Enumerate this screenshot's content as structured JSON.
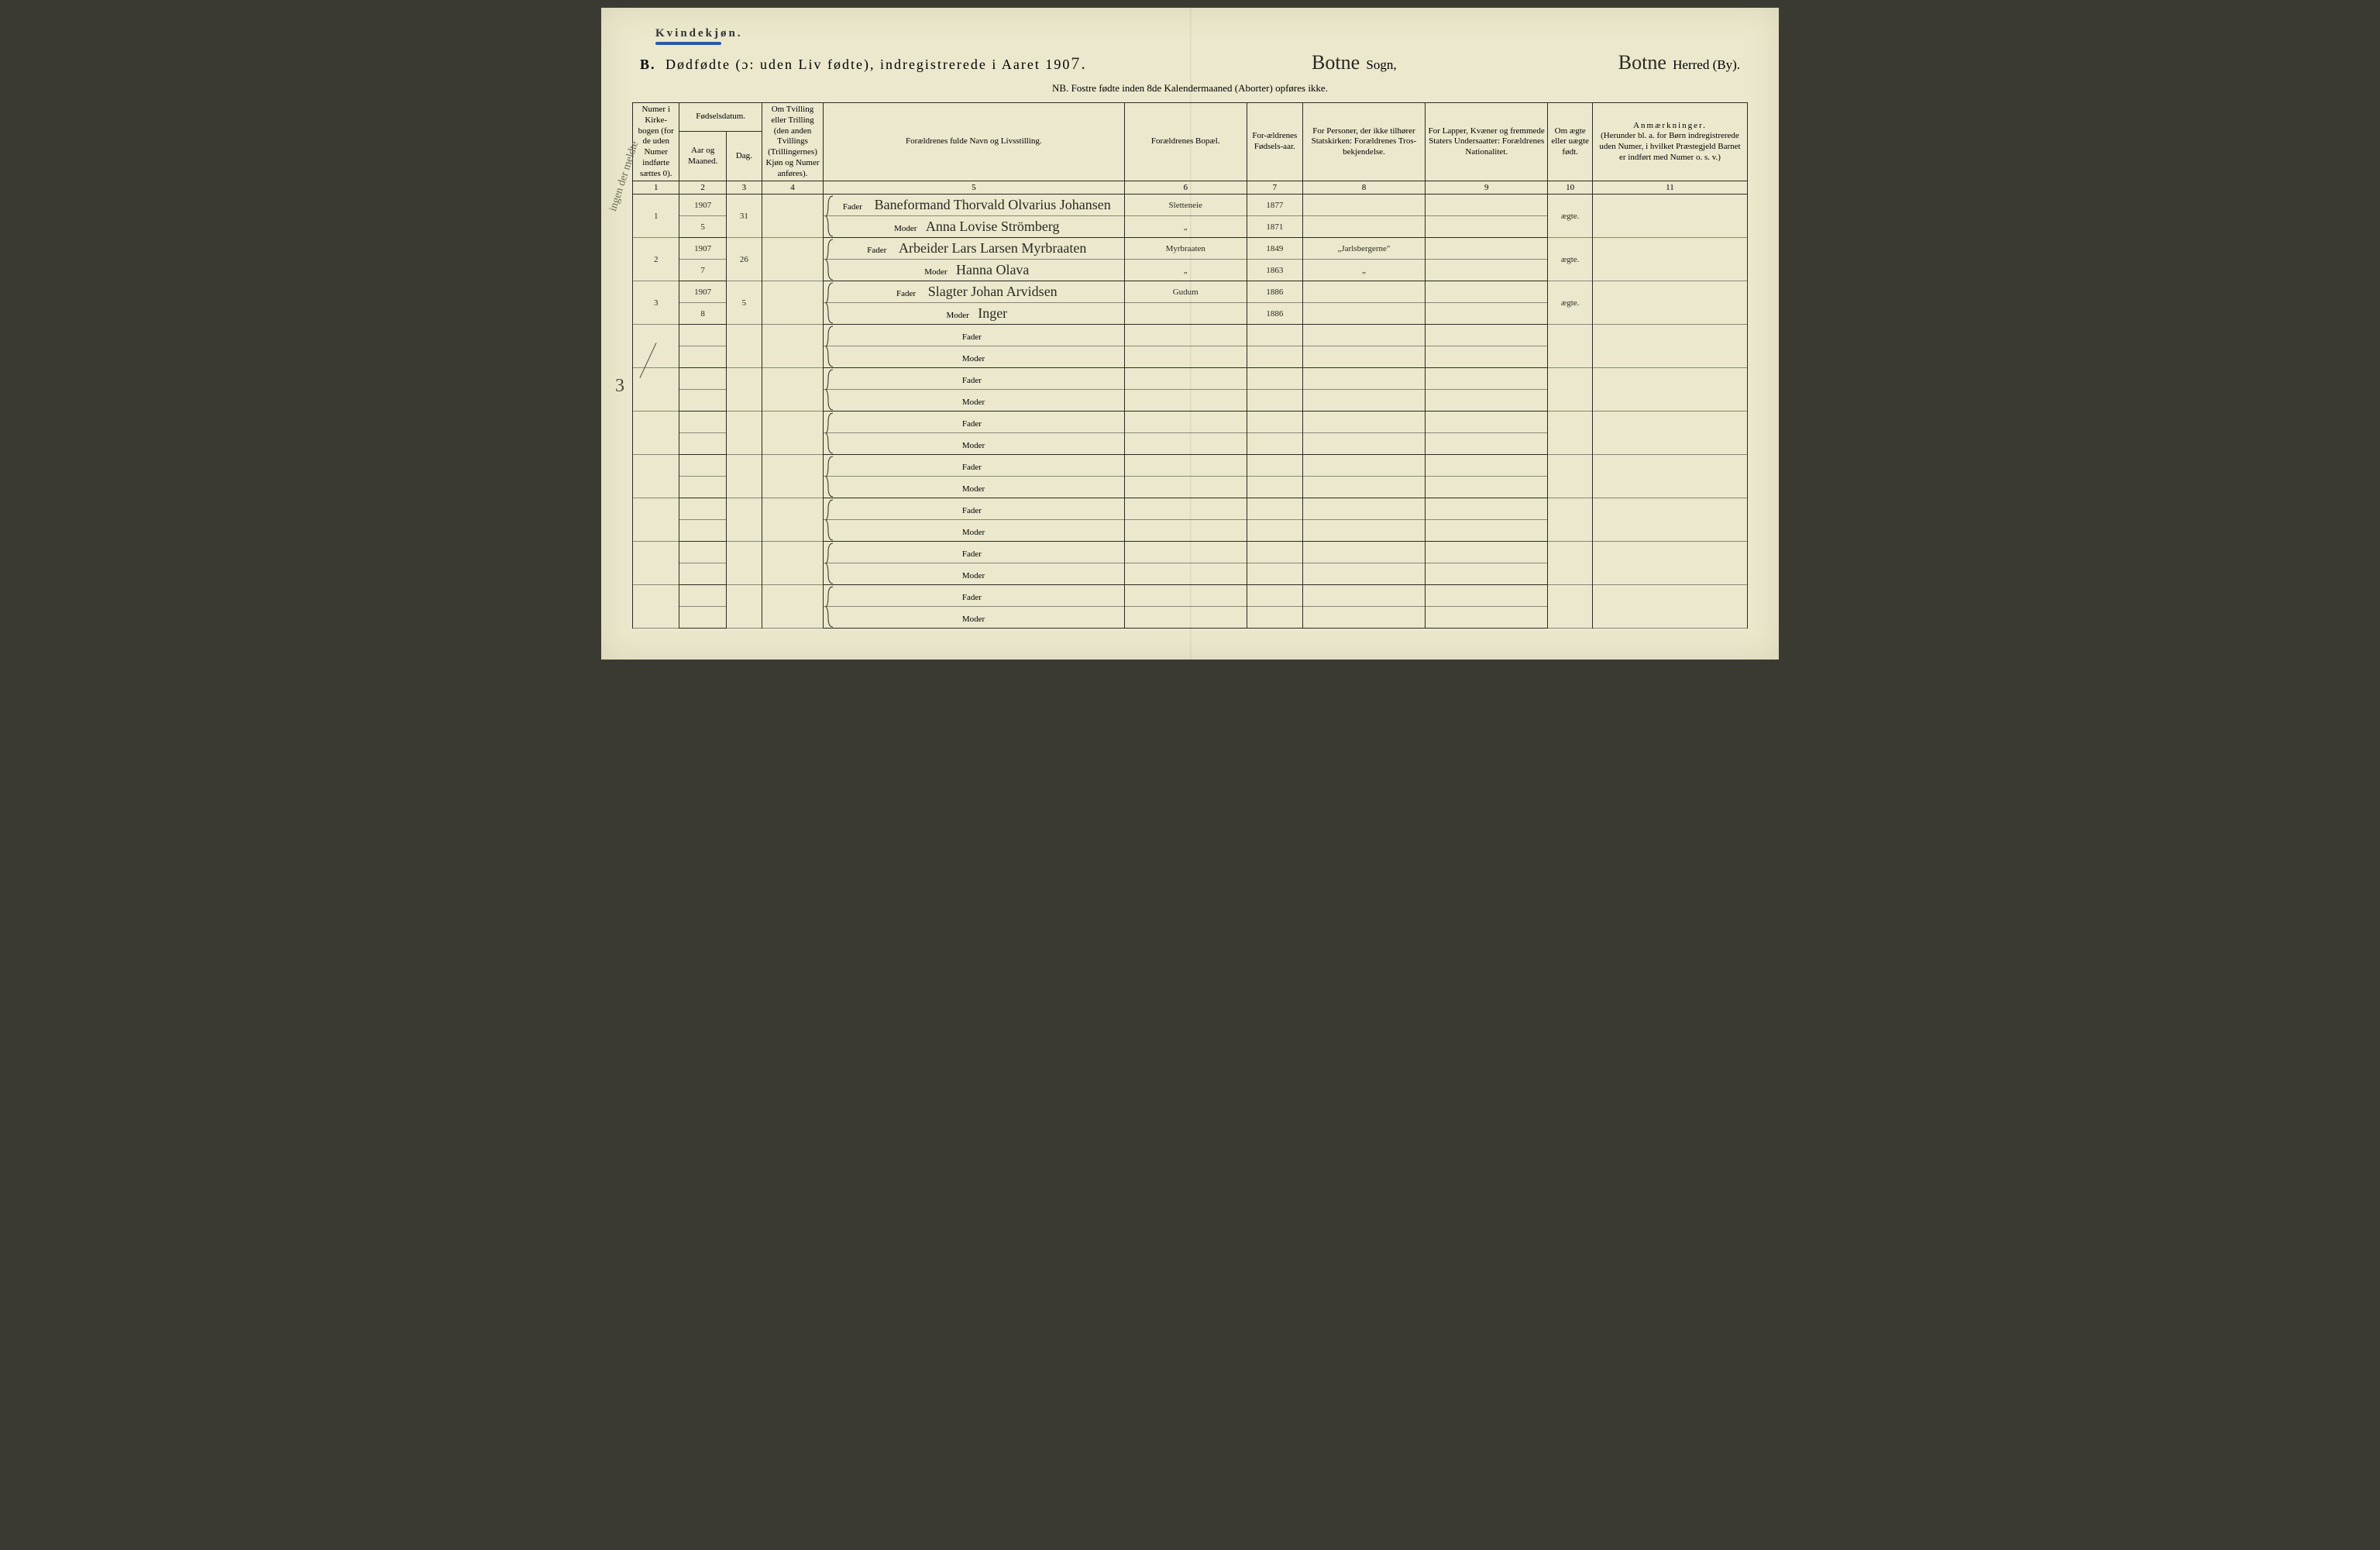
{
  "page": {
    "gender_label": "Kvindekjøn.",
    "title_prefix": "B.",
    "title_main": "Dødfødte (ɔ: uden Liv fødte), indregistrerede i Aaret 190",
    "title_year_suffix": "7.",
    "sogn_script": "Botne",
    "sogn_label": "Sogn,",
    "herred_script": "Botne",
    "herred_label": "Herred (By).",
    "nb_line": "NB.  Fostre fødte inden 8de Kalendermaaned (Aborter) opføres ikke."
  },
  "headers": {
    "c1": "Numer i Kirke-bogen (for de uden Numer indførte sættes 0).",
    "c2a": "Fødselsdatum.",
    "c2b": "Aar og Maaned.",
    "c3": "Dag.",
    "c4": "Om Tvilling eller Trilling (den anden Tvillings (Trillingernes) Kjøn og Numer anføres).",
    "c5": "Forældrenes fulde Navn og Livsstilling.",
    "c6": "Forældrenes Bopæl.",
    "c7": "For-ældrenes Fødsels-aar.",
    "c8": "For Personer, der ikke tilhører Statskirken: Forældrenes Tros-bekjendelse.",
    "c9": "For Lapper, Kvæner og fremmede Staters Undersaatter: Forældrenes Nationalitet.",
    "c10": "Om ægte eller uægte født.",
    "c11": "Anmærkninger.",
    "c11b": "(Herunder bl. a. for Børn indregistrerede uden Numer, i hvilket Præstegjeld Barnet er indført med Numer o. s. v.)"
  },
  "colnums": [
    "1",
    "2",
    "3",
    "4",
    "5",
    "6",
    "7",
    "8",
    "9",
    "10",
    "11"
  ],
  "parent_labels": {
    "father": "Fader",
    "mother": "Moder"
  },
  "margin_note": "ingen der meldte",
  "tally_mark": "3",
  "entries": [
    {
      "num": "1",
      "year_month_top": "1907",
      "year_month_bot": "5",
      "day": "31",
      "twin": "",
      "father": "Baneformand Thorvald Olvarius Johansen",
      "mother": "Anna Lovise Strömberg",
      "bopael_f": "Sletteneie",
      "bopael_m": "„",
      "birth_f": "1877",
      "birth_m": "1871",
      "relig": "",
      "nation": "",
      "legit": "ægte."
    },
    {
      "num": "2",
      "year_month_top": "1907",
      "year_month_bot": "7",
      "day": "26",
      "twin": "",
      "father": "Arbeider Lars Larsen Myrbraaten",
      "mother": "Hanna Olava",
      "bopael_f": "Myrbraaten",
      "bopael_m": "„",
      "birth_f": "1849",
      "birth_m": "1863",
      "relig": "„Jarlsbergerne\"",
      "relig2": "„",
      "nation": "",
      "legit": "ægte."
    },
    {
      "num": "3",
      "year_month_top": "1907",
      "year_month_bot": "8",
      "day": "5",
      "twin": "",
      "father": "Slagter Johan Arvidsen",
      "mother": "Inger",
      "bopael_f": "Gudum",
      "bopael_m": "",
      "birth_f": "1886",
      "birth_m": "1886",
      "relig": "",
      "nation": "",
      "legit": "ægte."
    }
  ],
  "empty_rows": 7,
  "colors": {
    "paper": "#ebe8cd",
    "ink": "#2a2a20",
    "blue_underline": "#2a5aa8"
  }
}
